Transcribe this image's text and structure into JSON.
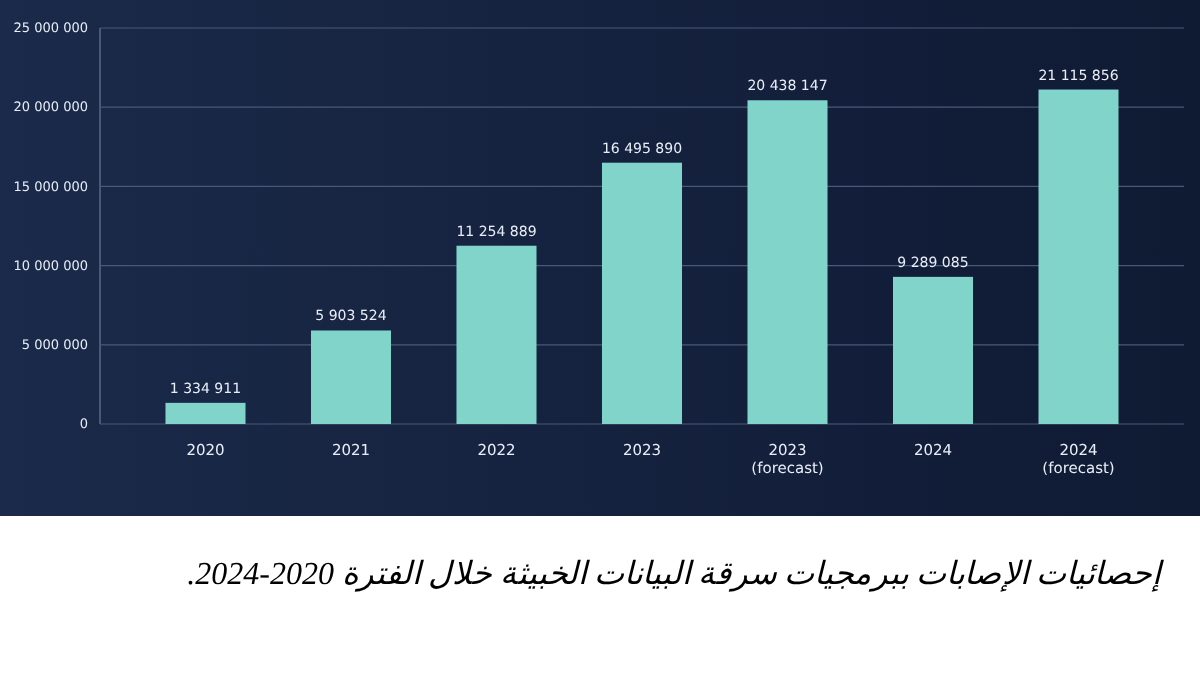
{
  "chart_data": {
    "type": "bar",
    "title": "إحصائيات الإصابات ببرمجيات سرقة البيانات الخبيثة خلال الفترة 2020-2024.",
    "categories": [
      "2020",
      "2021",
      "2022",
      "2023",
      "2023\n(forecast)",
      "2024",
      "2024\n(forecast)"
    ],
    "values": [
      1334911,
      5903524,
      11254889,
      16495890,
      20438147,
      9289085,
      21115856
    ],
    "value_labels": [
      "1 334 911",
      "5 903 524",
      "11 254 889",
      "16 495 890",
      "20 438 147",
      "9 289 085",
      "21 115 856"
    ],
    "color": "#80d4c9",
    "ylim": [
      0,
      25000000
    ],
    "yticks": [
      {
        "value": 0,
        "label": "0"
      },
      {
        "value": 5000000,
        "label": "5 000 000"
      },
      {
        "value": 10000000,
        "label": "10 000 000"
      },
      {
        "value": 15000000,
        "label": "15 000 000"
      },
      {
        "value": 20000000,
        "label": "20 000 000"
      },
      {
        "value": 25000000,
        "label": "25 000 000"
      }
    ],
    "grid": "y"
  }
}
